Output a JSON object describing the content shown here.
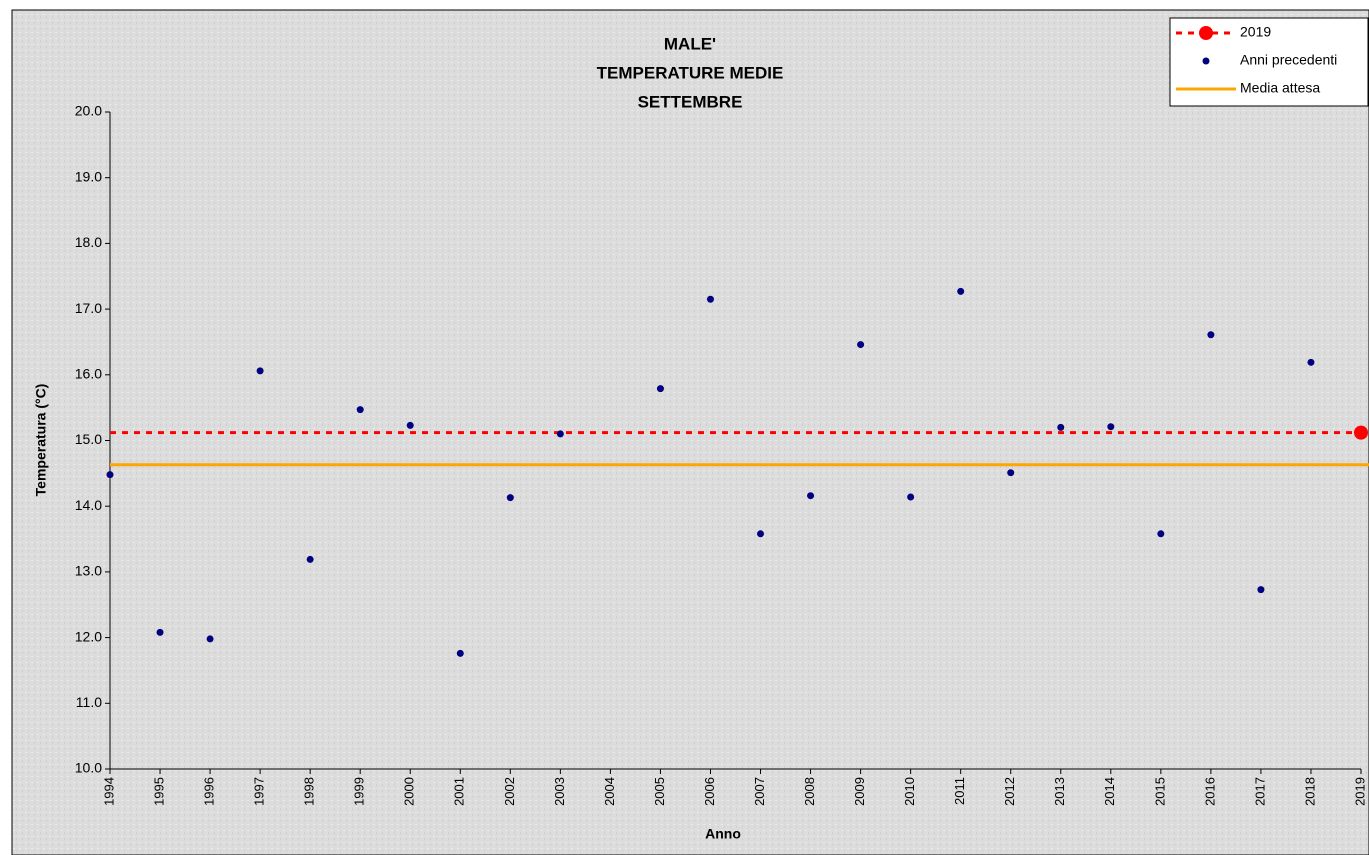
{
  "chart_data": {
    "type": "scatter",
    "title": [
      "MALE'",
      "TEMPERATURE MEDIE",
      "SETTEMBRE"
    ],
    "xlabel": "Anno",
    "ylabel": "Temperatura (°C)",
    "xlim": [
      1994,
      2019
    ],
    "xticks": [
      1994,
      1995,
      1996,
      1997,
      1998,
      1999,
      2000,
      2001,
      2002,
      2003,
      2004,
      2005,
      2006,
      2007,
      2008,
      2009,
      2010,
      2011,
      2012,
      2013,
      2014,
      2015,
      2016,
      2017,
      2018,
      2019
    ],
    "ylim": [
      10,
      20
    ],
    "yticks": [
      {
        "value": 10,
        "label": "10.0"
      },
      {
        "value": 11,
        "label": "11.0"
      },
      {
        "value": 12,
        "label": "12.0"
      },
      {
        "value": 13,
        "label": "13.0"
      },
      {
        "value": 14,
        "label": "14.0"
      },
      {
        "value": 15,
        "label": "15.0"
      },
      {
        "value": 16,
        "label": "16.0"
      },
      {
        "value": 17,
        "label": "17.0"
      },
      {
        "value": 18,
        "label": "18.0"
      },
      {
        "value": 19,
        "label": "19.0"
      },
      {
        "value": 20,
        "label": "20.0"
      }
    ],
    "grid": false,
    "legend": "upper right",
    "series": [
      {
        "name": "2019",
        "color": "#ff0000",
        "x": [
          2019
        ],
        "values": [
          15.12
        ]
      },
      {
        "name": "Anni precedenti",
        "color": "#000080",
        "x": [
          1994,
          1995,
          1996,
          1997,
          1998,
          1999,
          2000,
          2001,
          2002,
          2003,
          2004,
          2005,
          2006,
          2007,
          2008,
          2009,
          2010,
          2011,
          2012,
          2013,
          2014,
          2015,
          2016,
          2017,
          2018
        ],
        "values": [
          14.48,
          12.08,
          11.98,
          16.06,
          13.19,
          15.47,
          15.23,
          11.76,
          14.13,
          15.1,
          null,
          15.79,
          17.15,
          13.58,
          14.16,
          16.46,
          14.14,
          17.27,
          14.51,
          15.2,
          15.21,
          13.58,
          16.61,
          12.73,
          16.19
        ]
      },
      {
        "name": "Media attesa",
        "color": "#ffa500",
        "values": [
          14.63
        ]
      }
    ]
  }
}
